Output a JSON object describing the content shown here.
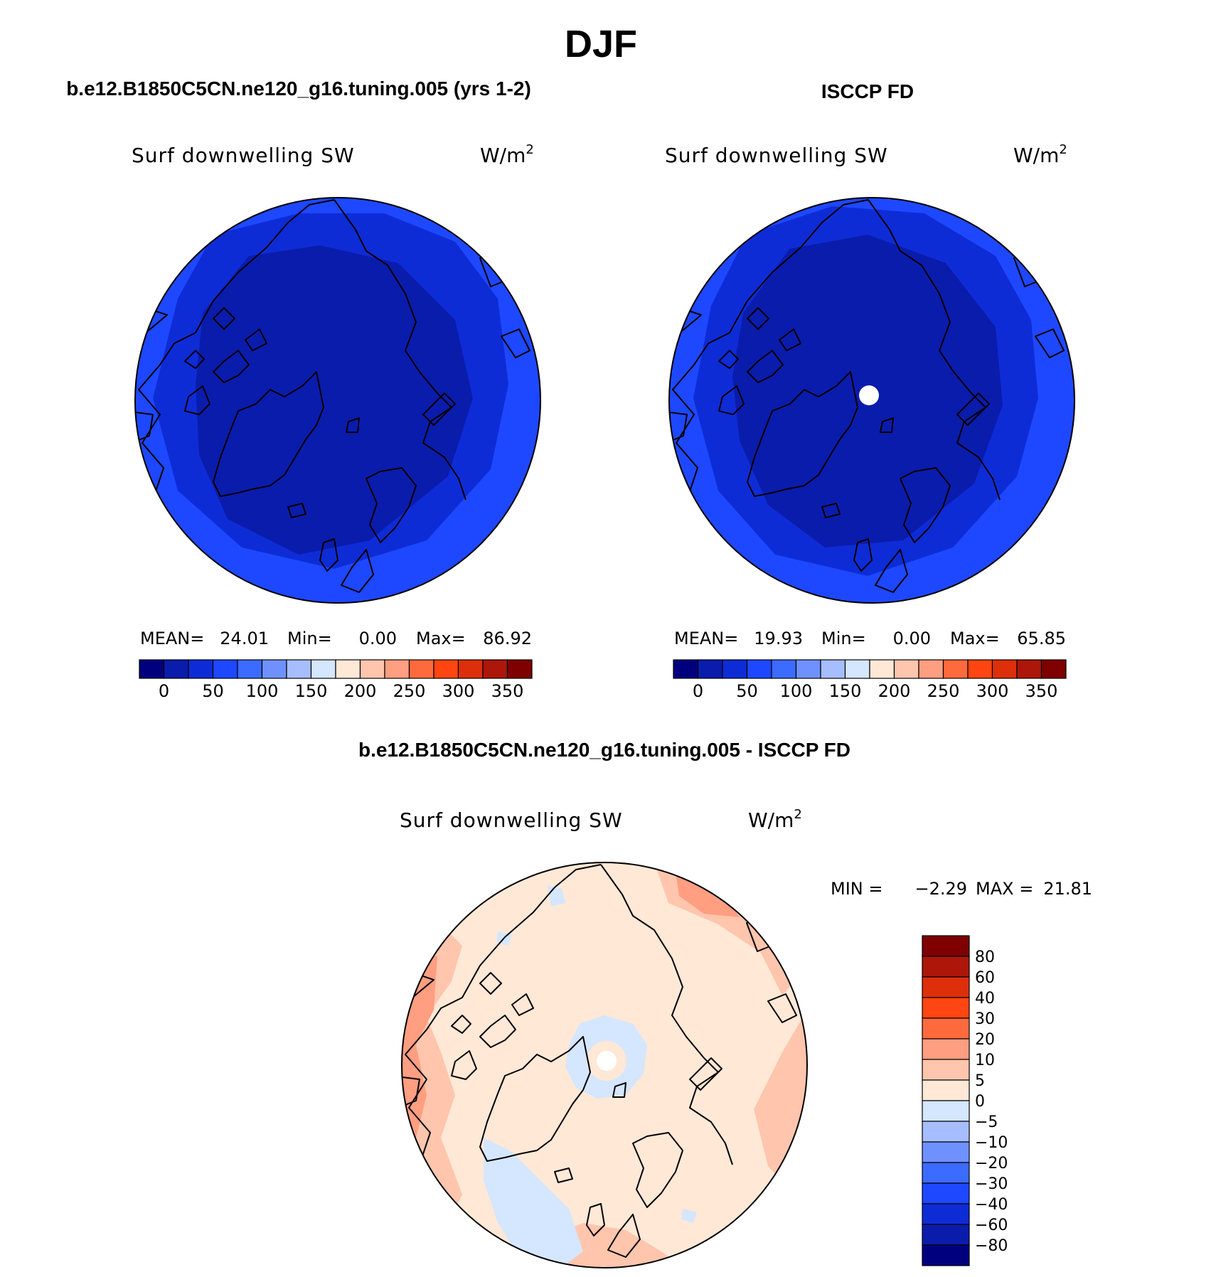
{
  "figure": {
    "season": "DJF",
    "palette_label_sets": {
      "abs": [
        "0",
        "50",
        "100",
        "150",
        "200",
        "250",
        "300",
        "350"
      ],
      "diff": [
        "80",
        "60",
        "40",
        "30",
        "20",
        "10",
        "5",
        "0",
        "−5",
        "−10",
        "−20",
        "−30",
        "−40",
        "−60",
        "−80"
      ]
    }
  },
  "chart_data": [
    {
      "type": "polar-contour-map",
      "panel": "model",
      "case_title": "b.e12.B1850C5CN.ne120_g16.tuning.005 (yrs 1-2)",
      "variable": "Surf downwelling SW",
      "units": "W/m",
      "units_exp": "2",
      "mean_label": "MEAN=",
      "mean_value": "24.01",
      "min_label": "Min=",
      "min_value": "0.00",
      "max_label": "Max=",
      "max_value": "86.92",
      "colorbar_ticks": [
        "0",
        "50",
        "100",
        "150",
        "200",
        "250",
        "300",
        "350"
      ],
      "colorbar_colors": [
        "#00007f",
        "#0a1cac",
        "#0e2cd6",
        "#1d48ff",
        "#3c6bff",
        "#6f91ff",
        "#a6beff",
        "#d5e6ff",
        "#ffe8d6",
        "#ffc5ad",
        "#ff9e80",
        "#ff6a3d",
        "#ff4511",
        "#de2f0b",
        "#ac170a",
        "#7f0000"
      ],
      "zones": [
        {
          "name": "outer",
          "level": "50-75",
          "color": "#1d48ff"
        },
        {
          "name": "middle",
          "level": "25-50",
          "color": "#0e2cd6"
        },
        {
          "name": "polar",
          "level": "0-25",
          "color": "#0a1cac"
        }
      ]
    },
    {
      "type": "polar-contour-map",
      "panel": "obs",
      "case_title": "ISCCP FD",
      "variable": "Surf downwelling SW",
      "units": "W/m",
      "units_exp": "2",
      "mean_label": "MEAN=",
      "mean_value": "19.93",
      "min_label": "Min=",
      "min_value": "0.00",
      "max_label": "Max=",
      "max_value": "65.85",
      "colorbar_ticks": [
        "0",
        "50",
        "100",
        "150",
        "200",
        "250",
        "300",
        "350"
      ],
      "colorbar_colors": [
        "#00007f",
        "#0a1cac",
        "#0e2cd6",
        "#1d48ff",
        "#3c6bff",
        "#6f91ff",
        "#a6beff",
        "#d5e6ff",
        "#ffe8d6",
        "#ffc5ad",
        "#ff9e80",
        "#ff6a3d",
        "#ff4511",
        "#de2f0b",
        "#ac170a",
        "#7f0000"
      ],
      "missing_pole": true,
      "zones": [
        {
          "name": "outer",
          "level": "50-75",
          "color": "#1d48ff"
        },
        {
          "name": "middle",
          "level": "25-50",
          "color": "#0e2cd6"
        },
        {
          "name": "polar",
          "level": "0-25",
          "color": "#0a1cac"
        }
      ]
    },
    {
      "type": "polar-contour-map",
      "panel": "difference",
      "case_title": "b.e12.B1850C5CN.ne120_g16.tuning.005 - ISCCP FD",
      "variable": "Surf downwelling SW",
      "units": "W/m",
      "units_exp": "2",
      "min_label": "MIN =",
      "min_value": "−2.29",
      "max_label": "MAX =",
      "max_value": "21.81",
      "colorbar_ticks": [
        "80",
        "60",
        "40",
        "30",
        "20",
        "10",
        "5",
        "0",
        "−5",
        "−10",
        "−20",
        "−30",
        "−40",
        "−60",
        "−80"
      ],
      "colorbar_colors": [
        "#7f0000",
        "#ac170a",
        "#de2f0b",
        "#ff4511",
        "#ff6a3d",
        "#ff9e80",
        "#ffc5ad",
        "#ffe8d6",
        "#d5e6ff",
        "#a6beff",
        "#6f91ff",
        "#3c6bff",
        "#1d48ff",
        "#0e2cd6",
        "#0a1cac",
        "#00007f"
      ],
      "missing_pole": true,
      "zones": [
        {
          "name": "background",
          "level": "0-5",
          "color": "#ffe8d6"
        },
        {
          "name": "warm",
          "level": "5-10",
          "color": "#ffc5ad"
        },
        {
          "name": "warmer",
          "level": "10-20",
          "color": "#ff9e80"
        },
        {
          "name": "cool",
          "level": "-5-0",
          "color": "#d5e6ff"
        }
      ]
    }
  ]
}
